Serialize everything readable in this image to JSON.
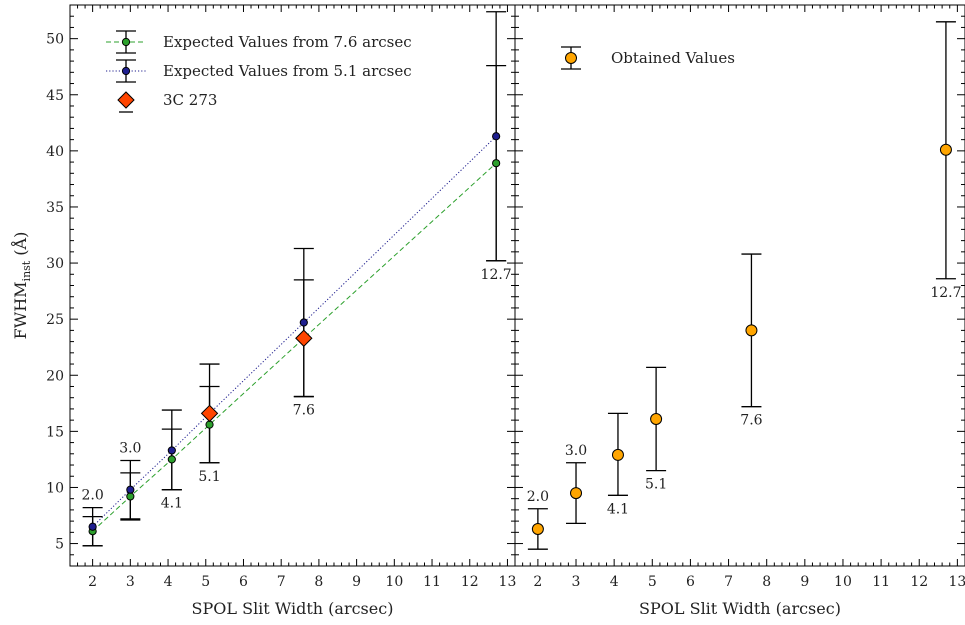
{
  "chart_data": [
    {
      "type": "scatter",
      "panel": "left",
      "xlabel": "SPOL Slit Width (arcsec)",
      "ylabel": "FWHM",
      "ylabel_sub": "inst",
      "ylabel_unit": " (Å)",
      "xlim": [
        1.4,
        13.2
      ],
      "ylim": [
        3,
        53
      ],
      "x_ticks": [
        2,
        3,
        4,
        5,
        6,
        7,
        8,
        9,
        10,
        11,
        12,
        13
      ],
      "y_ticks": [
        5,
        10,
        15,
        20,
        25,
        30,
        35,
        40,
        45,
        50
      ],
      "legend_position": "top-left",
      "series": [
        {
          "name": "Expected Values from 7.6 arcsec",
          "color": "#2ca02c",
          "line": "dashed",
          "points": [
            {
              "x": 2.0,
              "y": 6.1,
              "lo": 4.8,
              "hi": 7.4
            },
            {
              "x": 3.0,
              "y": 9.2,
              "lo": 7.1,
              "hi": 11.3
            },
            {
              "x": 4.1,
              "y": 12.5,
              "lo": 9.8,
              "hi": 15.2
            },
            {
              "x": 5.1,
              "y": 15.6,
              "lo": 12.2,
              "hi": 19.0
            },
            {
              "x": 7.6,
              "y": 23.3,
              "lo": 18.1,
              "hi": 28.5
            },
            {
              "x": 12.7,
              "y": 38.9,
              "lo": 30.2,
              "hi": 47.6
            }
          ]
        },
        {
          "name": "Expected Values from 5.1 arcsec",
          "color": "#1f1f8f",
          "line": "dotted",
          "points": [
            {
              "x": 2.0,
              "y": 6.5,
              "lo": 4.8,
              "hi": 8.2
            },
            {
              "x": 3.0,
              "y": 9.8,
              "lo": 7.2,
              "hi": 12.4
            },
            {
              "x": 4.1,
              "y": 13.3,
              "lo": 9.8,
              "hi": 16.9
            },
            {
              "x": 5.1,
              "y": 16.6,
              "lo": 12.2,
              "hi": 21.0
            },
            {
              "x": 7.6,
              "y": 24.7,
              "lo": 18.1,
              "hi": 31.3
            },
            {
              "x": 12.7,
              "y": 41.3,
              "lo": 30.2,
              "hi": 52.4
            }
          ]
        },
        {
          "name": "3C 273",
          "color": "#ff4500",
          "marker": "diamond",
          "points": [
            {
              "x": 5.1,
              "y": 16.6
            },
            {
              "x": 7.6,
              "y": 23.3
            }
          ]
        }
      ],
      "annotations": [
        {
          "text": "2.0",
          "x": 2.0,
          "y": 8.2,
          "pos": "above"
        },
        {
          "text": "3.0",
          "x": 3.0,
          "y": 12.4,
          "pos": "above"
        },
        {
          "text": "4.1",
          "x": 4.1,
          "y": 9.8,
          "pos": "below"
        },
        {
          "text": "5.1",
          "x": 5.1,
          "y": 12.2,
          "pos": "below"
        },
        {
          "text": "7.6",
          "x": 7.6,
          "y": 18.1,
          "pos": "below"
        },
        {
          "text": "12.7",
          "x": 12.7,
          "y": 30.2,
          "pos": "below"
        }
      ]
    },
    {
      "type": "scatter",
      "panel": "right",
      "xlabel": "SPOL Slit Width (arcsec)",
      "xlim": [
        1.4,
        13.2
      ],
      "ylim": [
        3,
        53
      ],
      "x_ticks": [
        2,
        3,
        4,
        5,
        6,
        7,
        8,
        9,
        10,
        11,
        12,
        13
      ],
      "legend_position": "top-left",
      "series": [
        {
          "name": "Obtained Values",
          "color": "#ffa500",
          "points": [
            {
              "x": 2.0,
              "y": 6.3,
              "lo": 4.5,
              "hi": 8.1
            },
            {
              "x": 3.0,
              "y": 9.5,
              "lo": 6.8,
              "hi": 12.2
            },
            {
              "x": 4.1,
              "y": 12.9,
              "lo": 9.3,
              "hi": 16.6
            },
            {
              "x": 5.1,
              "y": 16.1,
              "lo": 11.5,
              "hi": 20.7
            },
            {
              "x": 7.6,
              "y": 24.0,
              "lo": 17.2,
              "hi": 30.8
            },
            {
              "x": 12.7,
              "y": 40.1,
              "lo": 28.6,
              "hi": 51.5
            }
          ]
        }
      ],
      "annotations": [
        {
          "text": "2.0",
          "x": 2.0,
          "y": 8.1,
          "pos": "above"
        },
        {
          "text": "3.0",
          "x": 3.0,
          "y": 12.2,
          "pos": "above"
        },
        {
          "text": "4.1",
          "x": 4.1,
          "y": 9.3,
          "pos": "below"
        },
        {
          "text": "5.1",
          "x": 5.1,
          "y": 11.5,
          "pos": "below"
        },
        {
          "text": "7.6",
          "x": 7.6,
          "y": 17.2,
          "pos": "below"
        },
        {
          "text": "12.7",
          "x": 12.7,
          "y": 28.6,
          "pos": "below"
        }
      ]
    }
  ]
}
